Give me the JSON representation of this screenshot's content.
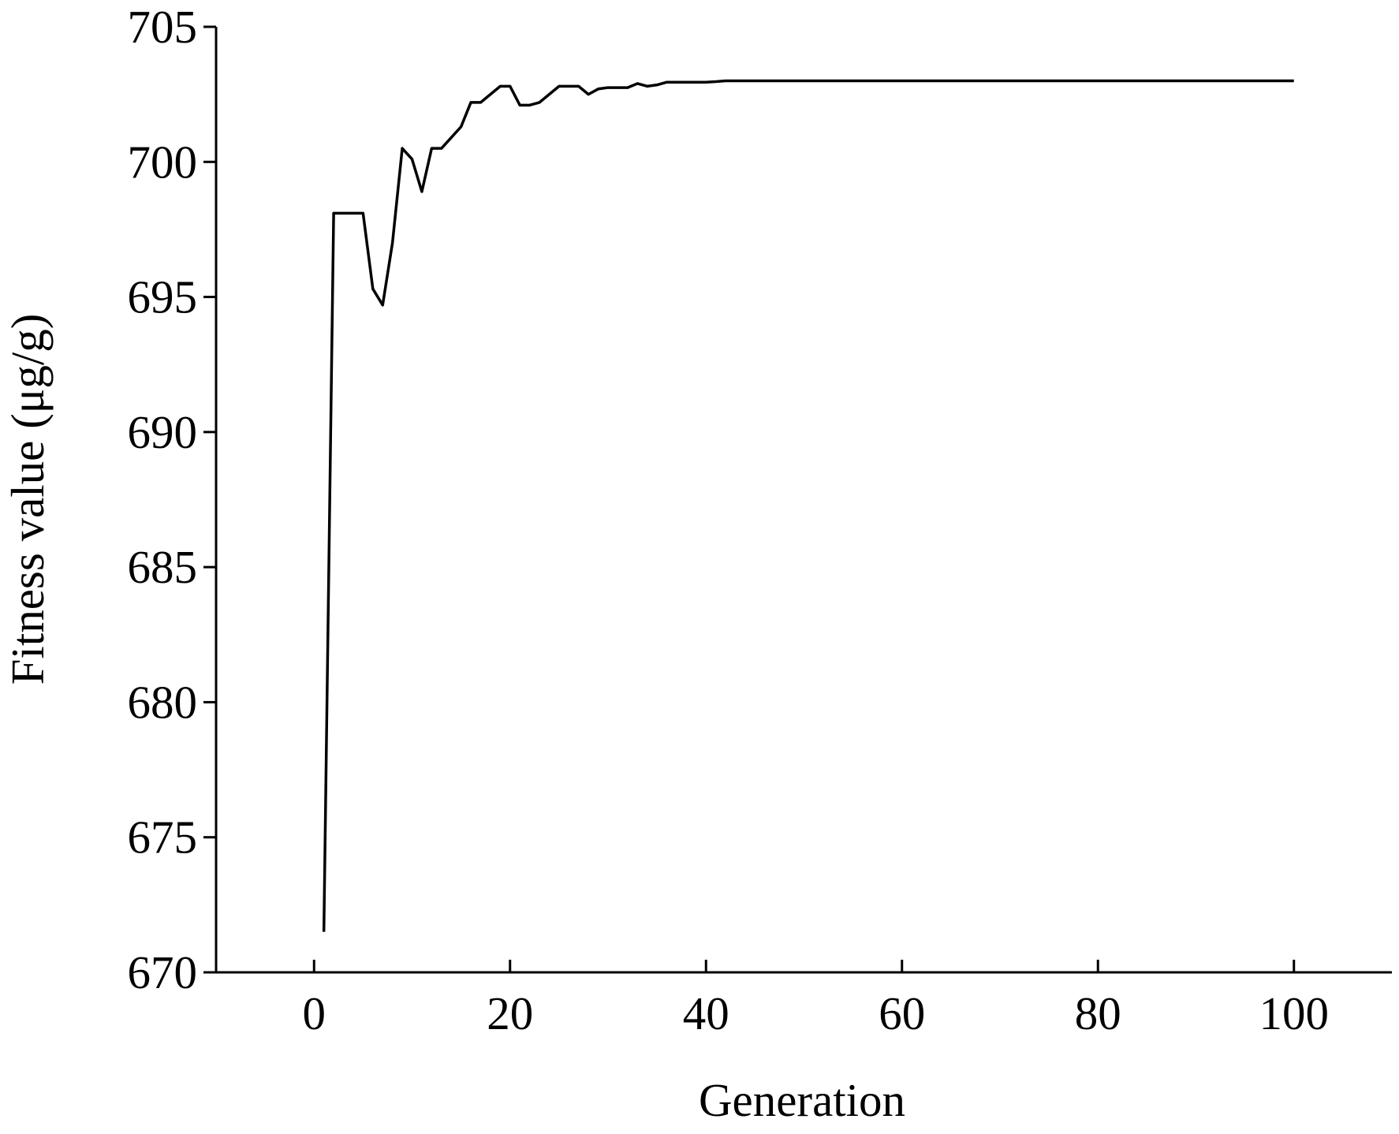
{
  "chart_data": {
    "type": "line",
    "x_label": "Generation",
    "y_label": "Fitness value (μg/g)",
    "x": [
      1,
      2,
      3,
      4,
      5,
      6,
      7,
      8,
      9,
      10,
      11,
      12,
      13,
      14,
      15,
      16,
      17,
      18,
      19,
      20,
      21,
      22,
      23,
      24,
      25,
      26,
      27,
      28,
      29,
      30,
      31,
      32,
      33,
      34,
      35,
      36,
      37,
      38,
      39,
      40,
      41,
      42,
      43,
      44,
      45,
      46,
      47,
      48,
      49,
      50,
      51,
      52,
      53,
      54,
      55,
      56,
      57,
      58,
      59,
      60,
      61,
      62,
      63,
      64,
      65,
      66,
      67,
      68,
      69,
      70,
      71,
      72,
      73,
      74,
      75,
      76,
      77,
      78,
      79,
      80,
      81,
      82,
      83,
      84,
      85,
      86,
      87,
      88,
      89,
      90,
      91,
      92,
      93,
      94,
      95,
      96,
      97,
      98,
      99,
      100
    ],
    "series": [
      {
        "color": "#000000",
        "values": [
          671.5,
          698.1,
          698.1,
          698.1,
          698.1,
          695.3,
          694.7,
          697.0,
          700.5,
          700.1,
          698.9,
          700.5,
          700.5,
          700.9,
          701.3,
          702.2,
          702.2,
          702.5,
          702.8,
          702.8,
          702.1,
          702.1,
          702.2,
          702.5,
          702.8,
          702.8,
          702.8,
          702.5,
          702.7,
          702.75,
          702.75,
          702.75,
          702.9,
          702.8,
          702.85,
          702.95,
          702.95,
          702.95,
          702.95,
          702.95,
          702.97,
          703.0,
          703.0,
          703.0,
          703.0,
          703.0,
          703.0,
          703.0,
          703.0,
          703.0,
          703.0,
          703.0,
          703.0,
          703.0,
          703.0,
          703.0,
          703.0,
          703.0,
          703.0,
          703.0,
          703.0,
          703.0,
          703.0,
          703.0,
          703.0,
          703.0,
          703.0,
          703.0,
          703.0,
          703.0,
          703.0,
          703.0,
          703.0,
          703.0,
          703.0,
          703.0,
          703.0,
          703.0,
          703.0,
          703.0,
          703.0,
          703.0,
          703.0,
          703.0,
          703.0,
          703.0,
          703.0,
          703.0,
          703.0,
          703.0,
          703.0,
          703.0,
          703.0,
          703.0,
          703.0,
          703.0,
          703.0,
          703.0,
          703.0,
          703.0
        ]
      }
    ],
    "xlim": [
      -10,
      110
    ],
    "xticks": [
      0,
      20,
      40,
      60,
      80,
      100
    ],
    "ylim": [
      670,
      705
    ],
    "yticks": [
      670,
      675,
      680,
      685,
      690,
      695,
      700,
      705
    ],
    "grid": false
  }
}
